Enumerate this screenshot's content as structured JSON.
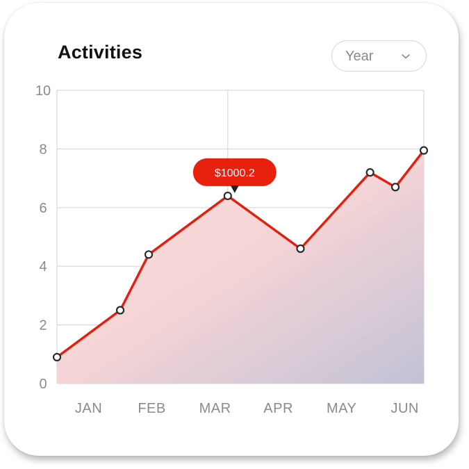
{
  "header": {
    "title": "Activities",
    "filter": {
      "selected": "Year",
      "icon": "chevron-down-icon"
    }
  },
  "colors": {
    "line": "#e02010",
    "tooltip": "#e8200e",
    "area_top": "#fbdcd8",
    "area_bottom": "#c2c2d6",
    "grid": "#d9d9d9"
  },
  "chart_data": {
    "type": "area",
    "title": "Activities",
    "x_ticks": [
      "JAN",
      "FEB",
      "MAR",
      "APR",
      "MAY",
      "JUN"
    ],
    "y_ticks": [
      0,
      2,
      4,
      6,
      8,
      10
    ],
    "ylim": [
      0,
      10
    ],
    "xlim": [
      0.5,
      6.3
    ],
    "grid": true,
    "series": [
      {
        "x": [
          0.5,
          1.5,
          1.95,
          3.2,
          4.35,
          5.45,
          5.85,
          6.3
        ],
        "y": [
          0.9,
          2.5,
          4.4,
          6.4,
          4.6,
          7.2,
          6.7,
          7.95
        ]
      }
    ],
    "annotation": {
      "x": 3.2,
      "y": 6.4,
      "text": "$1000.2"
    }
  }
}
